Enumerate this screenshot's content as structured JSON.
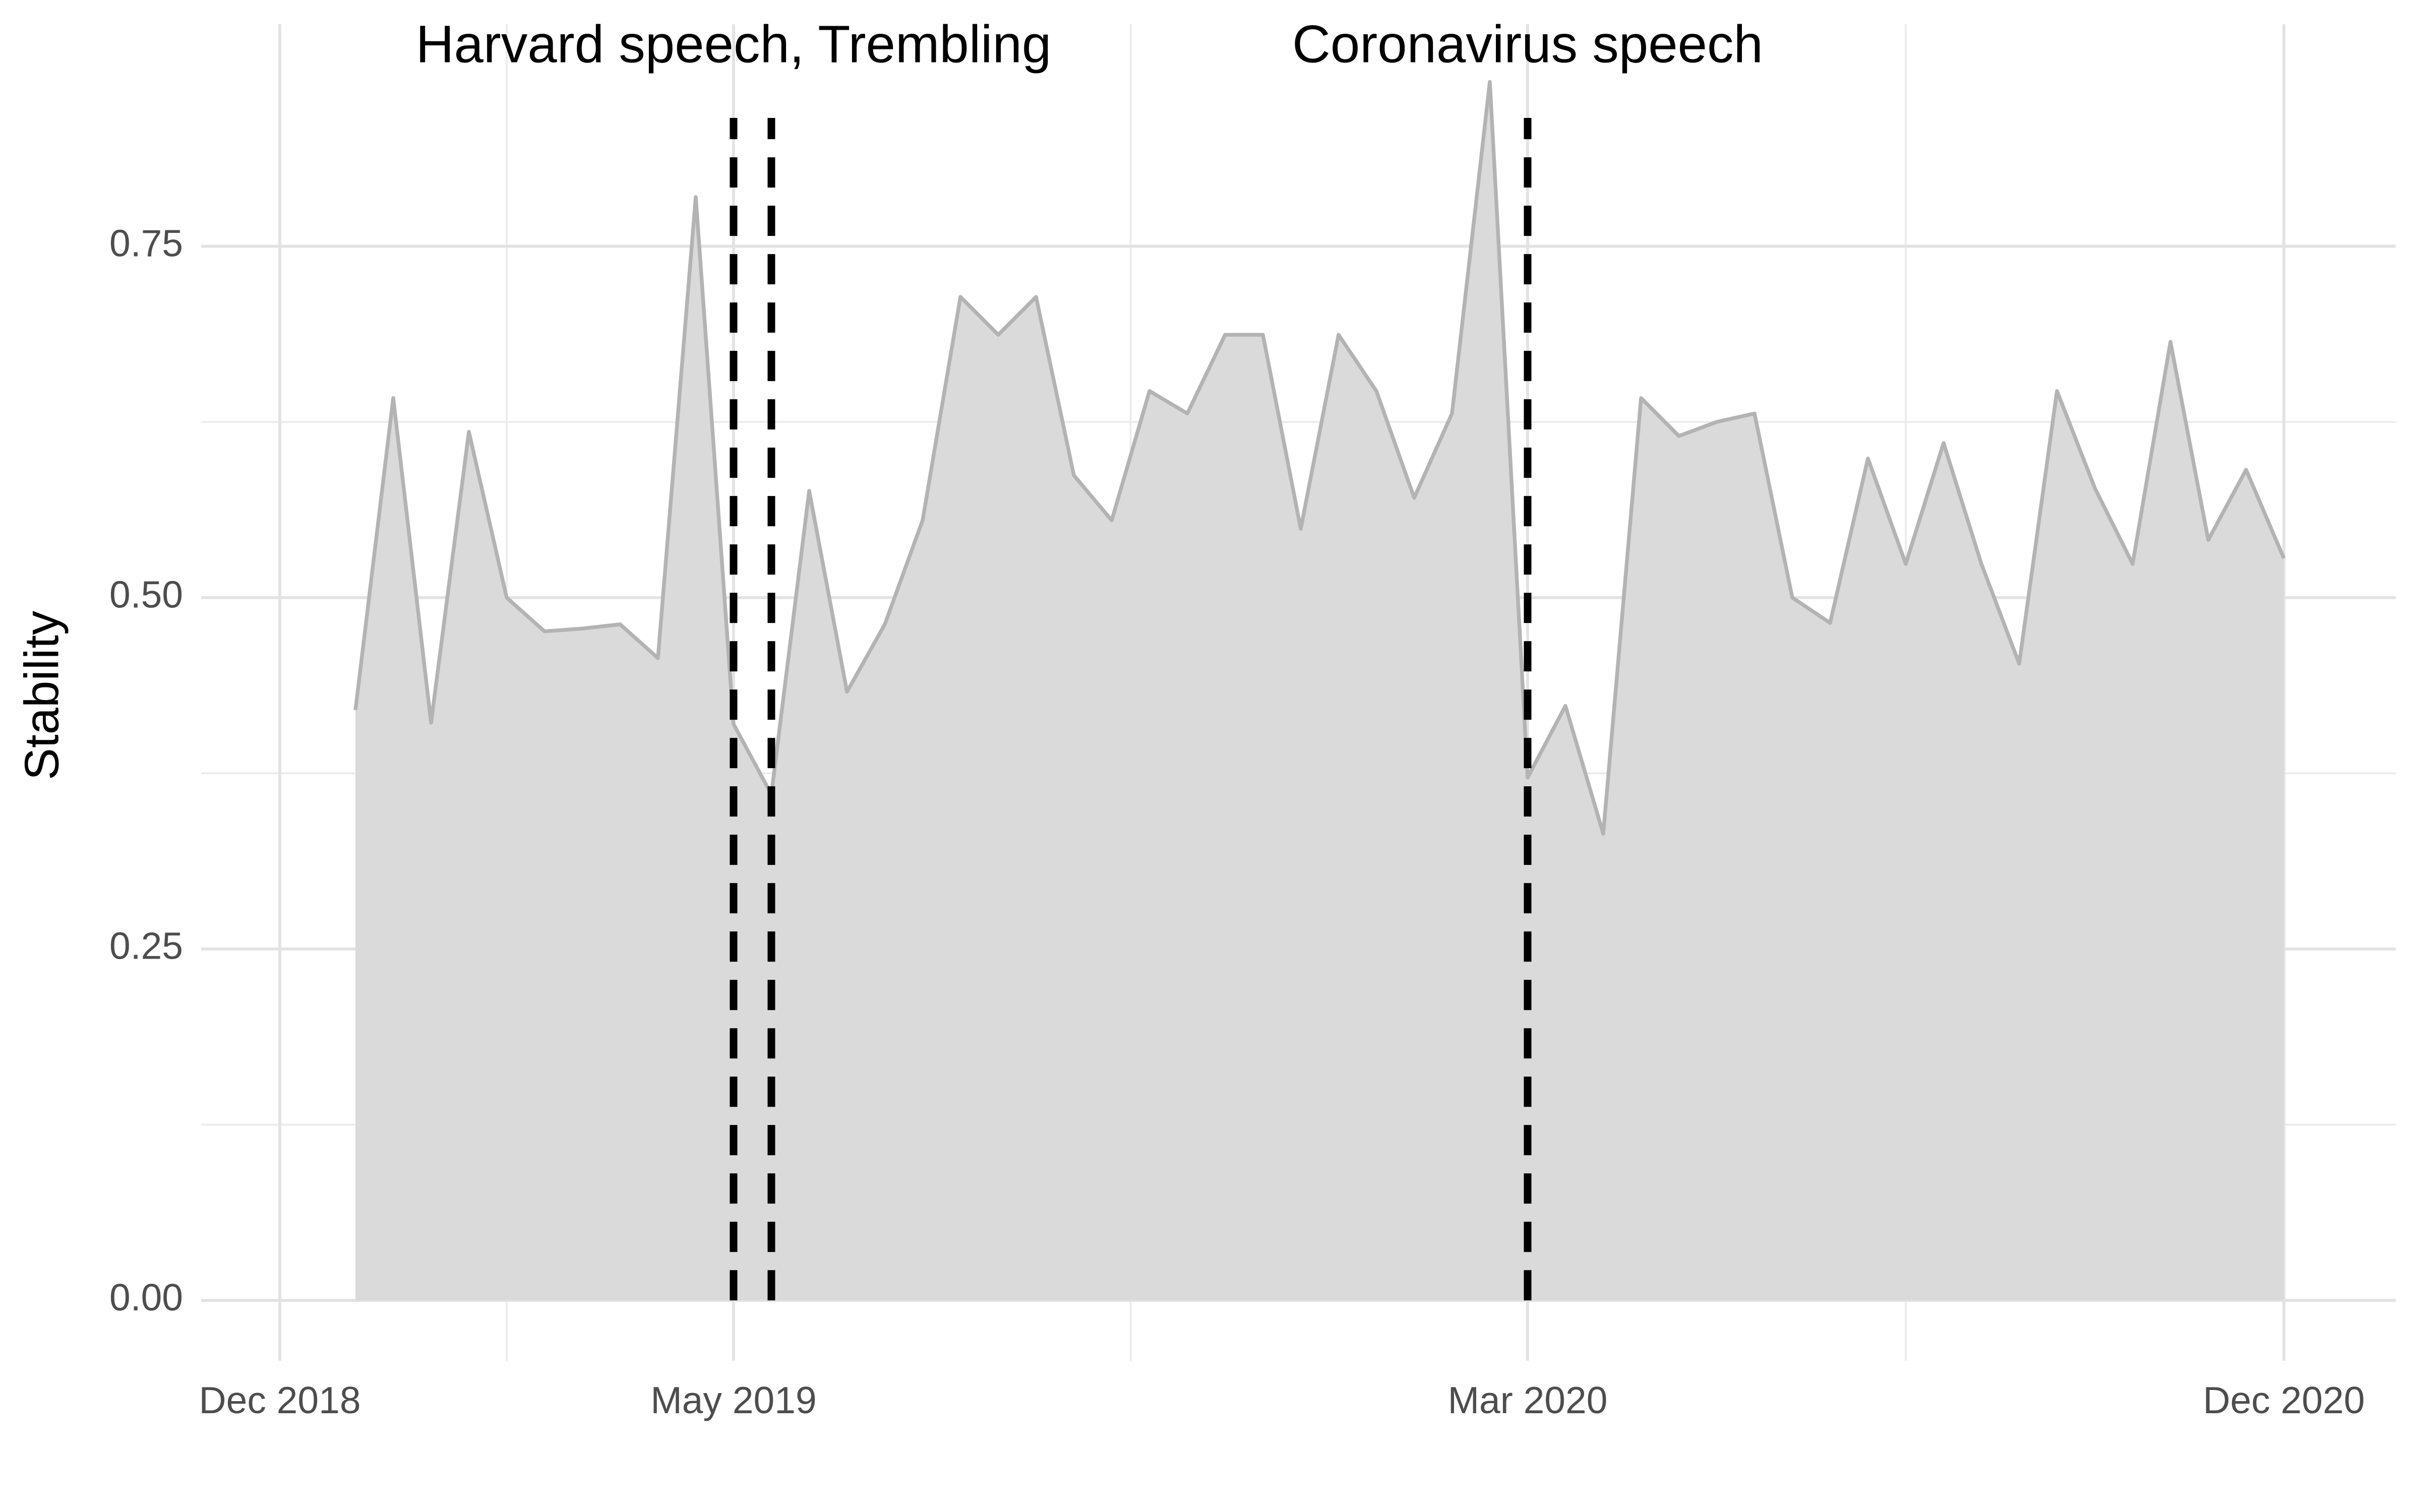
{
  "chart_data": {
    "type": "area",
    "y_label": "Stability",
    "x": [
      0,
      1,
      2,
      3,
      4,
      5,
      6,
      7,
      8,
      9,
      10,
      11,
      12,
      13,
      14,
      15,
      16,
      17,
      18,
      19,
      20,
      21,
      22,
      23,
      24,
      25,
      26,
      27,
      28,
      29,
      30,
      31,
      32,
      33,
      34,
      35,
      36,
      37,
      38,
      39,
      40,
      41,
      42,
      43,
      44,
      45,
      46,
      47,
      48,
      49,
      50,
      51
    ],
    "values": [
      0.42,
      0.642,
      0.411,
      0.618,
      0.5,
      0.476,
      0.478,
      0.481,
      0.457,
      0.785,
      0.41,
      0.36,
      0.576,
      0.433,
      0.481,
      0.555,
      0.714,
      0.687,
      0.714,
      0.587,
      0.555,
      0.647,
      0.631,
      0.687,
      0.687,
      0.549,
      0.687,
      0.647,
      0.571,
      0.631,
      0.867,
      0.372,
      0.423,
      0.332,
      0.642,
      0.615,
      0.625,
      0.631,
      0.5,
      0.482,
      0.599,
      0.524,
      0.61,
      0.524,
      0.453,
      0.647,
      0.578,
      0.524,
      0.682,
      0.541,
      0.591,
      0.528
    ],
    "color": "#b3b3b3",
    "fill": "#dadada",
    "xlim": [
      -4.08,
      53.96
    ],
    "xticks": [
      {
        "value": -2,
        "label": "Dec 2018"
      },
      {
        "value": 10,
        "label": "May 2019"
      },
      {
        "value": 31,
        "label": "Mar 2020"
      },
      {
        "value": 51,
        "label": "Dec 2020"
      }
    ],
    "ylim": [
      -0.043,
      0.908
    ],
    "yticks": [
      {
        "value": 0,
        "label": "0.00"
      },
      {
        "value": 0.25,
        "label": "0.25"
      },
      {
        "value": 0.5,
        "label": "0.50"
      },
      {
        "value": 0.75,
        "label": "0.75"
      }
    ],
    "grid": true,
    "event_lines": [
      10,
      11,
      31
    ],
    "annotations": [
      {
        "x": 10,
        "text": "Harvard speech, Trembling"
      },
      {
        "x": 31,
        "text": "Coronavirus speech"
      }
    ]
  }
}
